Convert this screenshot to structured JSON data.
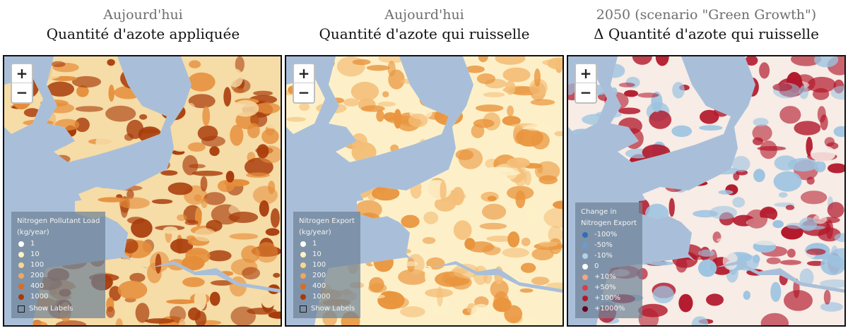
{
  "panels": [
    {
      "subtitle": "Aujourd'hui",
      "title": "Quantité d'azote appliquée",
      "legend": {
        "title_lines": [
          "Nitrogen Pollutant Load",
          "(kg/year)"
        ],
        "items": [
          {
            "label": "1",
            "color": "#fefefe"
          },
          {
            "label": "10",
            "color": "#fdf3c4"
          },
          {
            "label": "100",
            "color": "#f9d78c"
          },
          {
            "label": "200",
            "color": "#f2a65a"
          },
          {
            "label": "400",
            "color": "#de6b22"
          },
          {
            "label": "1000",
            "color": "#a83a0a"
          }
        ],
        "checkbox_label": "Show Labels"
      },
      "palette": {
        "land_low": "#f6dca6",
        "land_mid": "#e58d3a",
        "land_high": "#a83c0b"
      }
    },
    {
      "subtitle": "Aujourd'hui",
      "title": "Quantité d'azote qui ruisselle",
      "legend": {
        "title_lines": [
          "Nitrogen Export",
          "(kg/year)"
        ],
        "items": [
          {
            "label": "1",
            "color": "#fefefe"
          },
          {
            "label": "10",
            "color": "#fdf3c4"
          },
          {
            "label": "100",
            "color": "#f9d78c"
          },
          {
            "label": "200",
            "color": "#f2a65a"
          },
          {
            "label": "400",
            "color": "#de6b22"
          },
          {
            "label": "1000",
            "color": "#a83a0a"
          }
        ],
        "checkbox_label": "Show Labels"
      },
      "palette": {
        "land_low": "#fdf0c8",
        "land_mid": "#f4be78",
        "land_high": "#e9953e"
      }
    },
    {
      "subtitle": "2050 (scenario \"Green Growth\")",
      "title": "Δ Quantité d'azote qui ruisselle",
      "legend": {
        "title_lines": [
          "Change in",
          "Nitrogen Export"
        ],
        "items": [
          {
            "label": "-100%",
            "color": "#2f6fb6"
          },
          {
            "label": "-50%",
            "color": "#6b9ccd"
          },
          {
            "label": "-10%",
            "color": "#b4d0e8"
          },
          {
            "label": "0",
            "color": "#ffffff"
          },
          {
            "label": "+10%",
            "color": "#f4a582"
          },
          {
            "label": "+50%",
            "color": "#d6404b"
          },
          {
            "label": "+100%",
            "color": "#b2182b"
          },
          {
            "label": "+1000%",
            "color": "#67001f"
          }
        ],
        "checkbox_label": ""
      },
      "palette": {
        "land_low": "#f7ece6",
        "land_mid": "#9cc3e0",
        "land_high": "#b2182b"
      }
    }
  ],
  "zoom": {
    "in_label": "+",
    "out_label": "−"
  },
  "sea_color": "#a9bfd9"
}
